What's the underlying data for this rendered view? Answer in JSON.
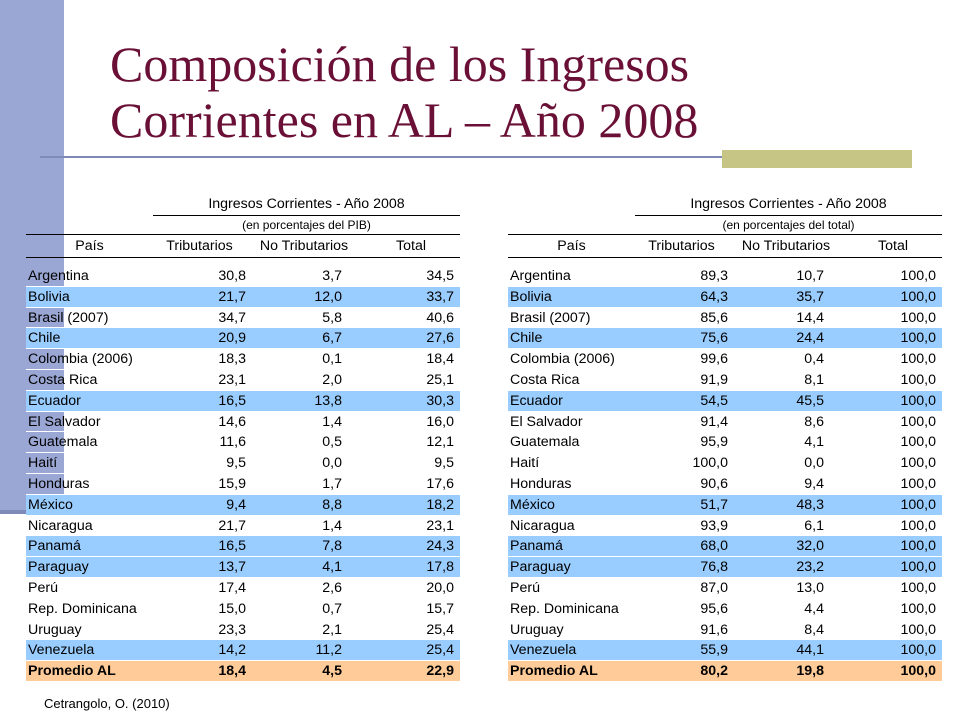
{
  "title": {
    "line1": "Composición de los Ingresos",
    "line2": "Corrientes en AL – Año 2008"
  },
  "tables": [
    {
      "header": "Ingresos Corrientes - Año 2008",
      "subheader": "(en porcentajes del PIB)",
      "columns": [
        "País",
        "Tributarios",
        "No Tributarios",
        "Total"
      ],
      "rows": [
        {
          "country": "Argentina",
          "trib": "30,8",
          "notrib": "3,7",
          "total": "34,5"
        },
        {
          "country": "Bolivia",
          "trib": "21,7",
          "notrib": "12,0",
          "total": "33,7"
        },
        {
          "country": "Brasil  (2007)",
          "trib": "34,7",
          "notrib": "5,8",
          "total": "40,6"
        },
        {
          "country": "Chile",
          "trib": "20,9",
          "notrib": "6,7",
          "total": "27,6"
        },
        {
          "country": "Colombia  (2006)",
          "trib": "18,3",
          "notrib": "0,1",
          "total": "18,4"
        },
        {
          "country": "Costa Rica",
          "trib": "23,1",
          "notrib": "2,0",
          "total": "25,1"
        },
        {
          "country": "Ecuador",
          "trib": "16,5",
          "notrib": "13,8",
          "total": "30,3"
        },
        {
          "country": "El Salvador",
          "trib": "14,6",
          "notrib": "1,4",
          "total": "16,0"
        },
        {
          "country": "Guatemala",
          "trib": "11,6",
          "notrib": "0,5",
          "total": "12,1"
        },
        {
          "country": "Haití",
          "trib": "9,5",
          "notrib": "0,0",
          "total": "9,5"
        },
        {
          "country": "Honduras",
          "trib": "15,9",
          "notrib": "1,7",
          "total": "17,6"
        },
        {
          "country": "México",
          "trib": "9,4",
          "notrib": "8,8",
          "total": "18,2"
        },
        {
          "country": "Nicaragua",
          "trib": "21,7",
          "notrib": "1,4",
          "total": "23,1"
        },
        {
          "country": "Panamá",
          "trib": "16,5",
          "notrib": "7,8",
          "total": "24,3"
        },
        {
          "country": "Paraguay",
          "trib": "13,7",
          "notrib": "4,1",
          "total": "17,8"
        },
        {
          "country": "Perú",
          "trib": "17,4",
          "notrib": "2,6",
          "total": "20,0"
        },
        {
          "country": "Rep. Dominicana",
          "trib": "15,0",
          "notrib": "0,7",
          "total": "15,7"
        },
        {
          "country": "Uruguay",
          "trib": "23,3",
          "notrib": "2,1",
          "total": "25,4"
        },
        {
          "country": "Venezuela",
          "trib": "14,2",
          "notrib": "11,2",
          "total": "25,4"
        }
      ],
      "average": {
        "country": "Promedio AL",
        "trib": "18,4",
        "notrib": "4,5",
        "total": "22,9"
      }
    },
    {
      "header": "Ingresos Corrientes - Año 2008",
      "subheader": "(en porcentajes del total)",
      "columns": [
        "País",
        "Tributarios",
        "No Tributarios",
        "Total"
      ],
      "rows": [
        {
          "country": "Argentina",
          "trib": "89,3",
          "notrib": "10,7",
          "total": "100,0"
        },
        {
          "country": "Bolivia",
          "trib": "64,3",
          "notrib": "35,7",
          "total": "100,0"
        },
        {
          "country": "Brasil  (2007)",
          "trib": "85,6",
          "notrib": "14,4",
          "total": "100,0"
        },
        {
          "country": "Chile",
          "trib": "75,6",
          "notrib": "24,4",
          "total": "100,0"
        },
        {
          "country": "Colombia  (2006)",
          "trib": "99,6",
          "notrib": "0,4",
          "total": "100,0"
        },
        {
          "country": "Costa Rica",
          "trib": "91,9",
          "notrib": "8,1",
          "total": "100,0"
        },
        {
          "country": "Ecuador",
          "trib": "54,5",
          "notrib": "45,5",
          "total": "100,0"
        },
        {
          "country": "El Salvador",
          "trib": "91,4",
          "notrib": "8,6",
          "total": "100,0"
        },
        {
          "country": "Guatemala",
          "trib": "95,9",
          "notrib": "4,1",
          "total": "100,0"
        },
        {
          "country": "Haití",
          "trib": "100,0",
          "notrib": "0,0",
          "total": "100,0"
        },
        {
          "country": "Honduras",
          "trib": "90,6",
          "notrib": "9,4",
          "total": "100,0"
        },
        {
          "country": "México",
          "trib": "51,7",
          "notrib": "48,3",
          "total": "100,0"
        },
        {
          "country": "Nicaragua",
          "trib": "93,9",
          "notrib": "6,1",
          "total": "100,0"
        },
        {
          "country": "Panamá",
          "trib": "68,0",
          "notrib": "32,0",
          "total": "100,0"
        },
        {
          "country": "Paraguay",
          "trib": "76,8",
          "notrib": "23,2",
          "total": "100,0"
        },
        {
          "country": "Perú",
          "trib": "87,0",
          "notrib": "13,0",
          "total": "100,0"
        },
        {
          "country": "Rep. Dominicana",
          "trib": "95,6",
          "notrib": "4,4",
          "total": "100,0"
        },
        {
          "country": "Uruguay",
          "trib": "91,6",
          "notrib": "8,4",
          "total": "100,0"
        },
        {
          "country": "Venezuela",
          "trib": "55,9",
          "notrib": "44,1",
          "total": "100,0"
        }
      ],
      "average": {
        "country": "Promedio AL",
        "trib": "80,2",
        "notrib": "19,8",
        "total": "100,0"
      }
    }
  ],
  "source": "Cetrangolo, O. (2010)",
  "colors": {
    "title": "#6a1036",
    "row_highlight": "#99ccff",
    "average_row": "#ffcc99",
    "left_bar": "#9aa6d3",
    "accent": "#c6c586"
  }
}
